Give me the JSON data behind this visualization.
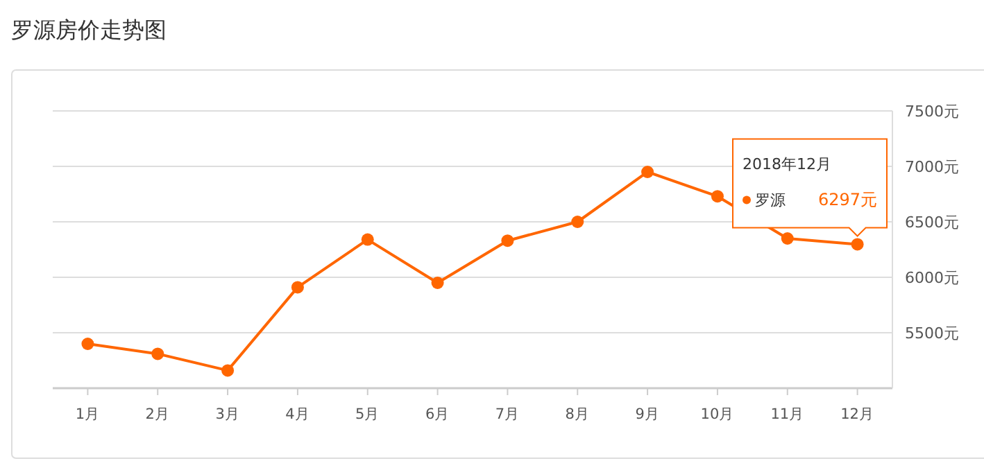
{
  "chart_data": {
    "type": "line",
    "title": "罗源房价走势图",
    "categories": [
      "1月",
      "2月",
      "3月",
      "4月",
      "5月",
      "6月",
      "7月",
      "8月",
      "9月",
      "10月",
      "11月",
      "12月"
    ],
    "series": [
      {
        "name": "罗源",
        "color": "#ff6600",
        "values": [
          5400,
          5310,
          5160,
          5910,
          6340,
          5950,
          6330,
          6500,
          6950,
          6730,
          6350,
          6297
        ],
        "value_labels": [
          null,
          null,
          null,
          null,
          null,
          null,
          null,
          null,
          null,
          null,
          null,
          "6297元"
        ]
      }
    ],
    "ylim": [
      5000,
      7500
    ],
    "yticks": [
      {
        "value": 5000,
        "label": null
      },
      {
        "value": 5500,
        "label": "5500元"
      },
      {
        "value": 6000,
        "label": "6000元"
      },
      {
        "value": 6500,
        "label": "6500元"
      },
      {
        "value": 7000,
        "label": "7000元"
      },
      {
        "value": 7500,
        "label": "7500元"
      }
    ],
    "grid": "y",
    "marker": "circle",
    "line_style": "solid",
    "annotations": [
      "2018年12月"
    ]
  }
}
